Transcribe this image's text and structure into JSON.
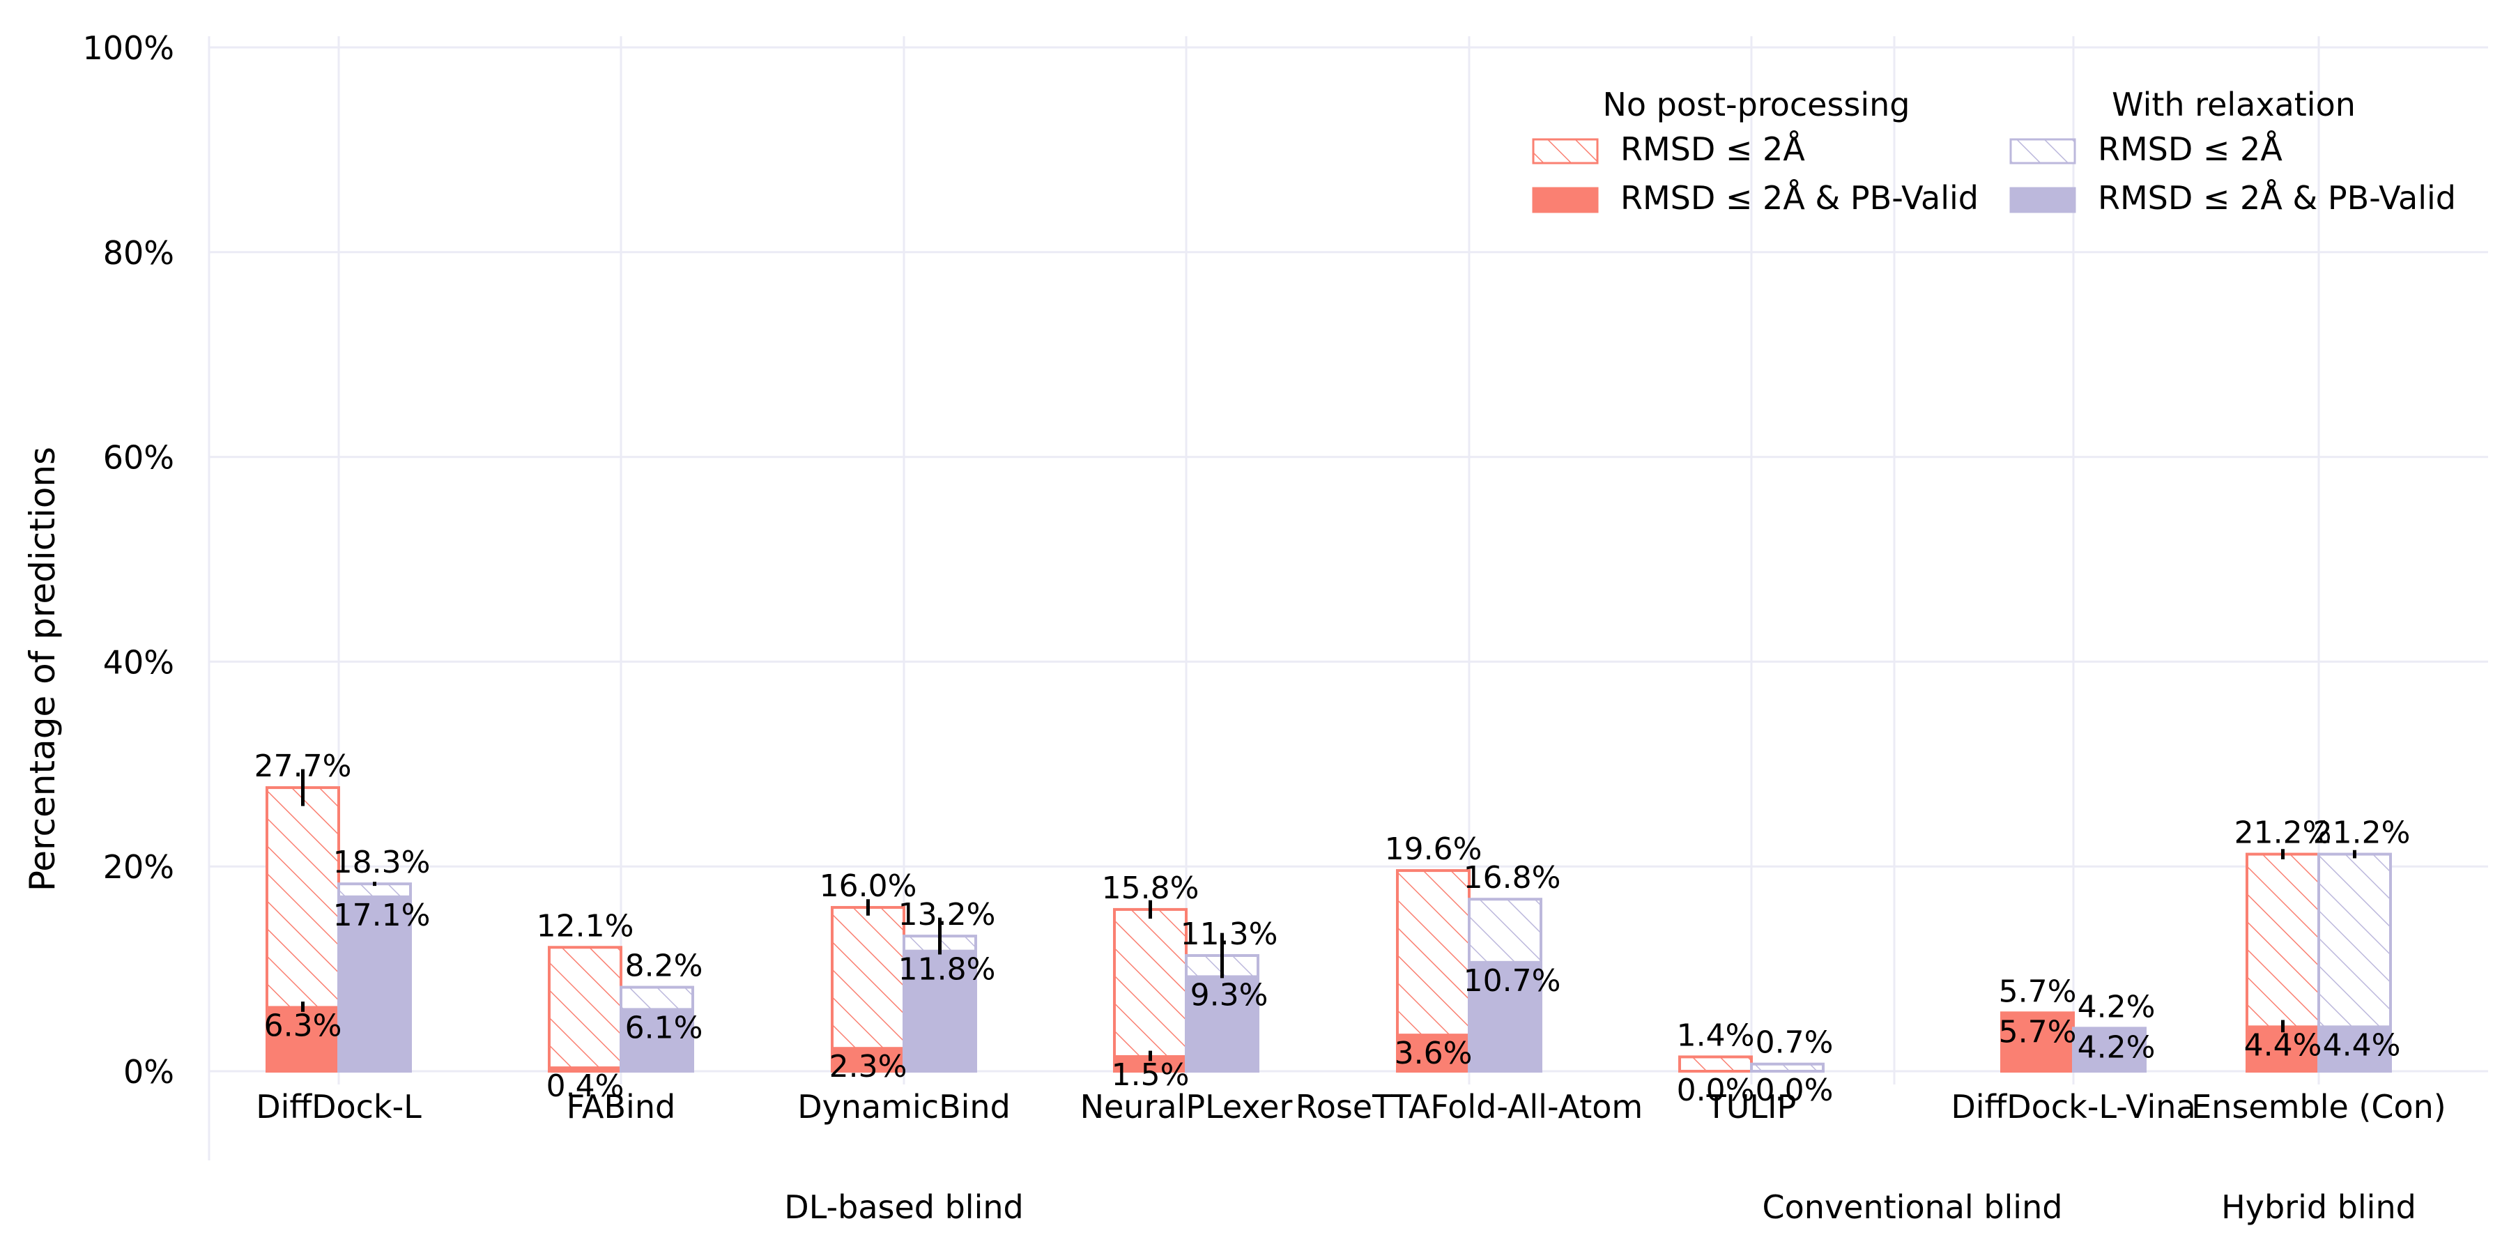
{
  "chart_data": {
    "type": "bar",
    "ylabel": "Percentage of predictions",
    "ylim": [
      0,
      100
    ],
    "yticks": [
      "0%",
      "20%",
      "40%",
      "60%",
      "80%",
      "100%"
    ],
    "grid": true,
    "categories": [
      "DiffDock-L",
      "FABind",
      "DynamicBind",
      "NeuralPLexer",
      "RoseTTAFold-All-Atom",
      "TULIP",
      "DiffDock-L-Vina",
      "Ensemble (Con)"
    ],
    "groups": [
      {
        "label": "DL-based blind",
        "members": [
          "DiffDock-L",
          "FABind",
          "DynamicBind",
          "NeuralPLexer",
          "RoseTTAFold-All-Atom"
        ]
      },
      {
        "label": "Conventional blind",
        "members": [
          "TULIP",
          "DiffDock-L-Vina"
        ]
      },
      {
        "label": "Hybrid blind",
        "members": [
          "Ensemble (Con)"
        ]
      }
    ],
    "legend": {
      "placement": "top-right",
      "columns": [
        {
          "title": "No post-processing",
          "entries": [
            "RMSD ≤ 2Å",
            "RMSD ≤ 2Å & PB-Valid"
          ]
        },
        {
          "title": "With relaxation",
          "entries": [
            "RMSD ≤ 2Å",
            "RMSD ≤ 2Å & PB-Valid"
          ]
        }
      ]
    },
    "series": [
      {
        "name": "No post-processing RMSD ≤ 2Å",
        "values": [
          27.7,
          12.1,
          16.0,
          15.8,
          19.6,
          1.4,
          5.7,
          21.2
        ],
        "labels": [
          "27.7%",
          "12.1%",
          "16.0%",
          "15.8%",
          "19.6%",
          "1.4%",
          "5.7%",
          "21.2%"
        ],
        "error": [
          1.8,
          0,
          0.8,
          0.9,
          0,
          0,
          0,
          0.5
        ]
      },
      {
        "name": "No post-processing RMSD ≤ 2Å & PB-Valid",
        "values": [
          6.3,
          0.4,
          2.3,
          1.5,
          3.6,
          0.0,
          5.7,
          4.4
        ],
        "labels": [
          "6.3%",
          "0.4%",
          "2.3%",
          "1.5%",
          "3.6%",
          "0.0%",
          "5.7%",
          "4.4%"
        ],
        "error": [
          0.5,
          0,
          0,
          0.5,
          0,
          0,
          0,
          0.6
        ]
      },
      {
        "name": "With relaxation RMSD ≤ 2Å",
        "values": [
          18.3,
          8.2,
          13.2,
          11.3,
          16.8,
          0.7,
          4.2,
          21.2
        ],
        "labels": [
          "18.3%",
          "8.2%",
          "13.2%",
          "11.3%",
          "16.8%",
          "0.7%",
          "4.2%",
          "21.2%"
        ],
        "error": [
          0.2,
          0,
          1.8,
          2.2,
          0,
          0,
          0,
          0.4
        ]
      },
      {
        "name": "With relaxation RMSD ≤ 2Å & PB-Valid",
        "values": [
          17.1,
          6.1,
          11.8,
          9.3,
          10.7,
          0.0,
          4.2,
          4.4
        ],
        "labels": [
          "17.1%",
          "6.1%",
          "11.8%",
          "9.3%",
          "10.7%",
          "0.0%",
          "4.2%",
          "4.4%"
        ],
        "error": [
          0,
          0,
          0,
          0,
          0,
          0,
          0,
          0
        ]
      }
    ],
    "colors": {
      "no_post": "#fa8072",
      "relax": "#bcb8dc",
      "grid": "#ebebf5",
      "error": "#000000"
    }
  }
}
